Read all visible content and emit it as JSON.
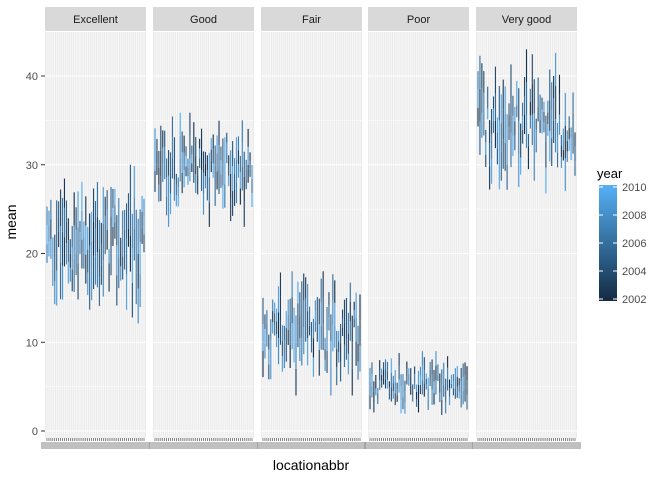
{
  "chart_data": {
    "type": "line",
    "facets": [
      "Excellent",
      "Good",
      "Fair",
      "Poor",
      "Very good"
    ],
    "xlabel": "locationabbr",
    "ylabel": "mean",
    "ylim": [
      0,
      44
    ],
    "yticks": [
      0,
      10,
      20,
      30,
      40
    ],
    "grid": true,
    "legend": {
      "title": "year",
      "position": "right",
      "ticks": [
        2002,
        2004,
        2006,
        2008,
        2010
      ],
      "range": [
        2002,
        2010
      ],
      "color_low": "#132B43",
      "color_high": "#56B1F7"
    },
    "panel_ranges": {
      "Excellent": [
        12,
        30
      ],
      "Good": [
        23,
        36
      ],
      "Fair": [
        4,
        18
      ],
      "Poor": [
        1.5,
        9
      ],
      "Very good": [
        26,
        43
      ]
    },
    "n_locations": 51,
    "years_per_location": 9
  }
}
